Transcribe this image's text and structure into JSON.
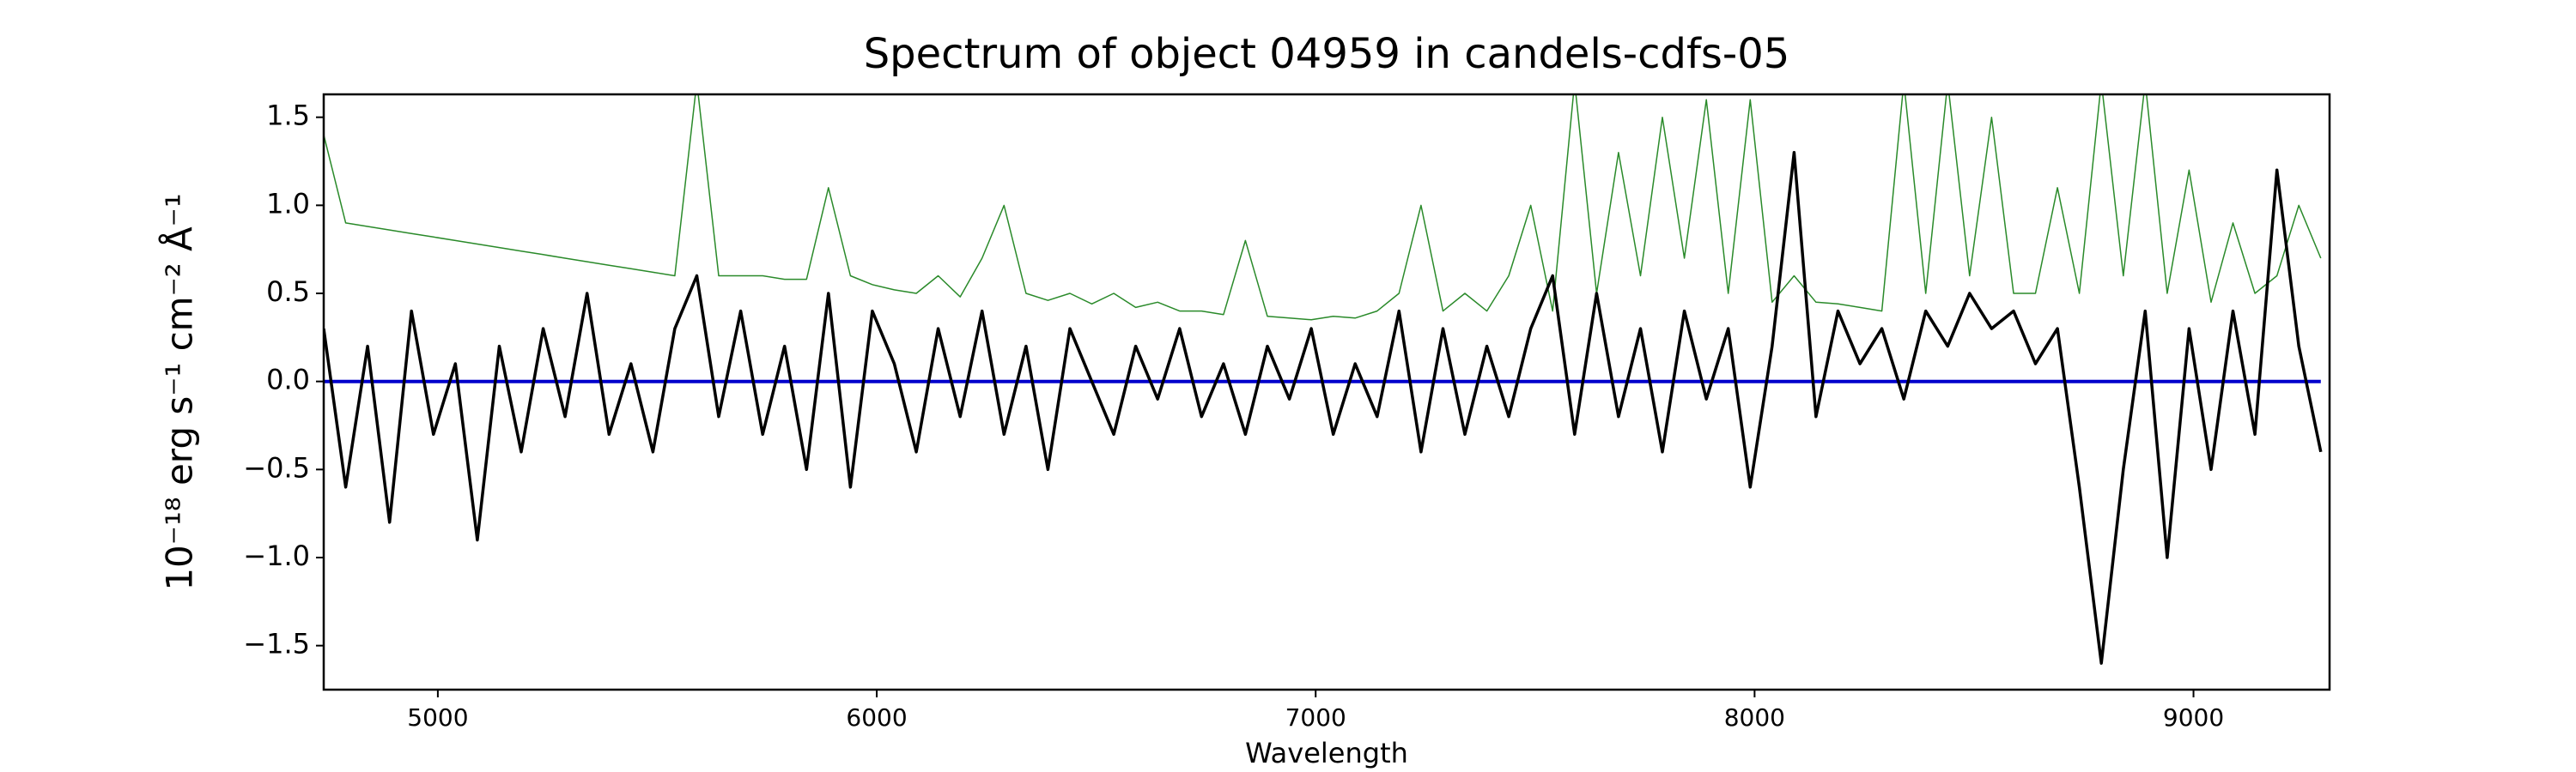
{
  "chart_data": {
    "type": "line",
    "title": "Spectrum of object 04959 in candels-cdfs-05",
    "xlabel": "Wavelength",
    "ylabel": "10⁻¹⁸ erg s⁻¹ cm⁻² Å⁻¹",
    "x": [
      4740,
      4790,
      4840,
      4890,
      4940,
      4990,
      5040,
      5090,
      5140,
      5190,
      5240,
      5290,
      5340,
      5390,
      5440,
      5490,
      5540,
      5590,
      5640,
      5690,
      5740,
      5790,
      5840,
      5890,
      5940,
      5990,
      6040,
      6090,
      6140,
      6190,
      6240,
      6290,
      6340,
      6390,
      6440,
      6490,
      6540,
      6590,
      6640,
      6690,
      6740,
      6790,
      6840,
      6890,
      6940,
      6990,
      7040,
      7090,
      7140,
      7190,
      7240,
      7290,
      7340,
      7390,
      7440,
      7490,
      7540,
      7590,
      7640,
      7690,
      7740,
      7790,
      7840,
      7890,
      7940,
      7990,
      8040,
      8090,
      8140,
      8190,
      8240,
      8290,
      8340,
      8390,
      8440,
      8490,
      8540,
      8590,
      8640,
      8690,
      8740,
      8790,
      8840,
      8890,
      8940,
      8990,
      9040,
      9090,
      9140,
      9190,
      9240,
      9290
    ],
    "series": [
      {
        "color": "#2a8a2a",
        "width": 1.5,
        "values": [
          1.4,
          0.9,
          0.88,
          0.86,
          0.84,
          0.82,
          0.8,
          0.78,
          0.76,
          0.74,
          0.72,
          0.7,
          0.68,
          0.66,
          0.64,
          0.62,
          0.6,
          1.7,
          0.6,
          0.6,
          0.6,
          0.58,
          0.58,
          1.1,
          0.6,
          0.55,
          0.52,
          0.5,
          0.6,
          0.48,
          0.7,
          1.0,
          0.5,
          0.46,
          0.5,
          0.44,
          0.5,
          0.42,
          0.45,
          0.4,
          0.4,
          0.38,
          0.8,
          0.37,
          0.36,
          0.35,
          0.37,
          0.36,
          0.4,
          0.5,
          1.0,
          0.4,
          0.5,
          0.4,
          0.6,
          1.0,
          0.4,
          1.7,
          0.5,
          1.3,
          0.6,
          1.5,
          0.7,
          1.6,
          0.5,
          1.6,
          0.45,
          0.6,
          0.45,
          0.44,
          0.42,
          0.4,
          1.7,
          0.5,
          1.7,
          0.6,
          1.5,
          0.5,
          0.5,
          1.1,
          0.5,
          1.7,
          0.6,
          1.7,
          0.5,
          1.2,
          0.45,
          0.9,
          0.5,
          0.6,
          1.0,
          0.7
        ]
      },
      {
        "color": "#0000cc",
        "width": 4,
        "values": [
          0,
          0,
          0,
          0,
          0,
          0,
          0,
          0,
          0,
          0,
          0,
          0,
          0,
          0,
          0,
          0,
          0,
          0,
          0,
          0,
          0,
          0,
          0,
          0,
          0,
          0,
          0,
          0,
          0,
          0,
          0,
          0,
          0,
          0,
          0,
          0,
          0,
          0,
          0,
          0,
          0,
          0,
          0,
          0,
          0,
          0,
          0,
          0,
          0,
          0,
          0,
          0,
          0,
          0,
          0,
          0,
          0,
          0,
          0,
          0,
          0,
          0,
          0,
          0,
          0,
          0,
          0,
          0,
          0,
          0,
          0,
          0,
          0,
          0,
          0,
          0,
          0,
          0,
          0,
          0,
          0,
          0,
          0,
          0,
          0,
          0,
          0,
          0,
          0,
          0,
          0,
          0
        ]
      },
      {
        "color": "#000000",
        "width": 3.5,
        "values": [
          0.3,
          -0.6,
          0.2,
          -0.8,
          0.4,
          -0.3,
          0.1,
          -0.9,
          0.2,
          -0.4,
          0.3,
          -0.2,
          0.5,
          -0.3,
          0.1,
          -0.4,
          0.3,
          0.6,
          -0.2,
          0.4,
          -0.3,
          0.2,
          -0.5,
          0.5,
          -0.6,
          0.4,
          0.1,
          -0.4,
          0.3,
          -0.2,
          0.4,
          -0.3,
          0.2,
          -0.5,
          0.3,
          0.0,
          -0.3,
          0.2,
          -0.1,
          0.3,
          -0.2,
          0.1,
          -0.3,
          0.2,
          -0.1,
          0.3,
          -0.3,
          0.1,
          -0.2,
          0.4,
          -0.4,
          0.3,
          -0.3,
          0.2,
          -0.2,
          0.3,
          0.6,
          -0.3,
          0.5,
          -0.2,
          0.3,
          -0.4,
          0.4,
          -0.1,
          0.3,
          -0.6,
          0.2,
          1.3,
          -0.2,
          0.4,
          0.1,
          0.3,
          -0.1,
          0.4,
          0.2,
          0.5,
          0.3,
          0.4,
          0.1,
          0.3,
          -0.6,
          -1.6,
          -0.5,
          0.4,
          -1.0,
          0.3,
          -0.5,
          0.4,
          -0.3,
          1.2,
          0.2,
          -0.4
        ]
      }
    ],
    "xlim": [
      4740,
      9310
    ],
    "xticks": [
      5000,
      6000,
      7000,
      8000,
      9000
    ],
    "ylim": [
      -1.75,
      1.63
    ],
    "yticks": [
      {
        "value": -1.5,
        "label": "−1.5"
      },
      {
        "value": -1.0,
        "label": "−1.0"
      },
      {
        "value": -0.5,
        "label": "−0.5"
      },
      {
        "value": 0,
        "label": "0.0"
      },
      0.5,
      {
        "value": 1.0,
        "label": "1.0"
      },
      1.5
    ],
    "grid": false
  }
}
